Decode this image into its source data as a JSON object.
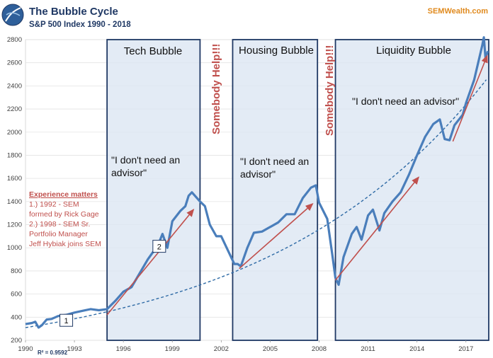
{
  "header": {
    "title": "The Bubble Cycle",
    "subtitle": "S&P 500 Index 1990 - 2018",
    "brand": "SEMWealth.com",
    "logo_icon": "semwealth-globe-icon"
  },
  "colors": {
    "price_line": "#4a7ebb",
    "trend_line": "#2e6aa5",
    "arrow": "#c0504d",
    "box_border": "#1f3864",
    "box_fill": "#dce6f2",
    "help_text": "#c0504d",
    "title": "#1f3864",
    "brand": "#e08a1e"
  },
  "chart_data": {
    "type": "line",
    "title": "The Bubble Cycle",
    "subtitle": "S&P 500 Index 1990 - 2018",
    "xlim": [
      1990,
      2018.4
    ],
    "ylim": [
      200,
      2800
    ],
    "x_ticks": [
      "1990",
      "1993",
      "1996",
      "1999",
      "2002",
      "2005",
      "2008",
      "2011",
      "2014",
      "2017"
    ],
    "y_ticks": [
      "200",
      "400",
      "600",
      "800",
      "1000",
      "1200",
      "1400",
      "1600",
      "1800",
      "2000",
      "2200",
      "2400",
      "2600",
      "2800"
    ],
    "series": [
      {
        "name": "S&P 500",
        "x": [
          1990.0,
          1990.4,
          1990.6,
          1990.8,
          1991.0,
          1991.3,
          1991.6,
          1992.0,
          1992.5,
          1993.0,
          1993.5,
          1994.0,
          1994.5,
          1995.0,
          1995.5,
          1996.0,
          1996.5,
          1997.0,
          1997.5,
          1997.8,
          1998.0,
          1998.4,
          1998.7,
          1999.0,
          1999.5,
          1999.8,
          2000.0,
          2000.2,
          2000.7,
          2001.0,
          2001.3,
          2001.7,
          2002.0,
          2002.5,
          2002.8,
          2003.0,
          2003.2,
          2003.6,
          2004.0,
          2004.5,
          2005.0,
          2005.5,
          2006.0,
          2006.5,
          2007.0,
          2007.5,
          2007.8,
          2008.0,
          2008.5,
          2008.8,
          2009.0,
          2009.2,
          2009.5,
          2010.0,
          2010.3,
          2010.6,
          2011.0,
          2011.3,
          2011.7,
          2012.0,
          2012.5,
          2013.0,
          2013.5,
          2014.0,
          2014.5,
          2015.0,
          2015.4,
          2015.7,
          2016.0,
          2016.3,
          2016.8,
          2017.0,
          2017.5,
          2018.0,
          2018.1,
          2018.2,
          2018.35
        ],
        "y": [
          340,
          350,
          360,
          310,
          330,
          380,
          385,
          410,
          420,
          440,
          455,
          470,
          460,
          470,
          540,
          620,
          660,
          780,
          900,
          960,
          980,
          1120,
          1000,
          1230,
          1320,
          1360,
          1450,
          1480,
          1400,
          1360,
          1200,
          1100,
          1100,
          950,
          860,
          860,
          840,
          1000,
          1130,
          1140,
          1180,
          1220,
          1290,
          1290,
          1430,
          1520,
          1540,
          1390,
          1250,
          950,
          740,
          680,
          920,
          1120,
          1180,
          1070,
          1280,
          1330,
          1150,
          1300,
          1400,
          1480,
          1630,
          1800,
          1960,
          2070,
          2110,
          1940,
          1930,
          2060,
          2150,
          2250,
          2450,
          2750,
          2820,
          2640,
          2700
        ]
      },
      {
        "name": "Exponential trend",
        "r_squared_label": "R² = 0.9592",
        "x": [
          1990,
          2018.4
        ],
        "y": [
          310,
          2480
        ]
      }
    ],
    "phases": [
      {
        "label": "Tech Bubble",
        "start": 1995.0,
        "end": 2000.7,
        "quote": "\"I don't need an advisor\"",
        "quote_lines": [
          "\"I don't need an",
          "advisor\""
        ]
      },
      {
        "label": "Housing Bubble",
        "start": 2002.7,
        "end": 2007.9,
        "quote": "\"I don't need an advisor\"",
        "quote_lines": [
          "\"I don't need an",
          "advisor\""
        ]
      },
      {
        "label": "Liquidity Bubble",
        "start": 2009.0,
        "end": 2018.4,
        "quote": "\"I don't need an advisor\"",
        "quote_lines": [
          "\"I don't need an advisor\""
        ]
      }
    ],
    "warnings": [
      "Somebody Help!!!",
      "Somebody Help!!!"
    ],
    "arrows": [
      {
        "from": [
          1995.0,
          420
        ],
        "to": [
          2000.3,
          1330
        ]
      },
      {
        "from": [
          2003.1,
          820
        ],
        "to": [
          2007.6,
          1380
        ]
      },
      {
        "from": [
          2009.0,
          720
        ],
        "to": [
          2014.1,
          1610
        ]
      },
      {
        "from": [
          2016.2,
          1920
        ],
        "to": [
          2018.3,
          2660
        ]
      }
    ],
    "markers": [
      {
        "label": "1",
        "x": 1992.5,
        "y": 370
      },
      {
        "label": "2",
        "x": 1998.2,
        "y": 1010
      }
    ],
    "legend_note": {
      "title": "Experience matters",
      "lines": [
        "1.) 1992 - SEM",
        "formed by Rick Gage",
        "2.) 1998 - SEM Sr.",
        "Portfolio Manager",
        "Jeff Hybiak joins SEM"
      ]
    }
  }
}
